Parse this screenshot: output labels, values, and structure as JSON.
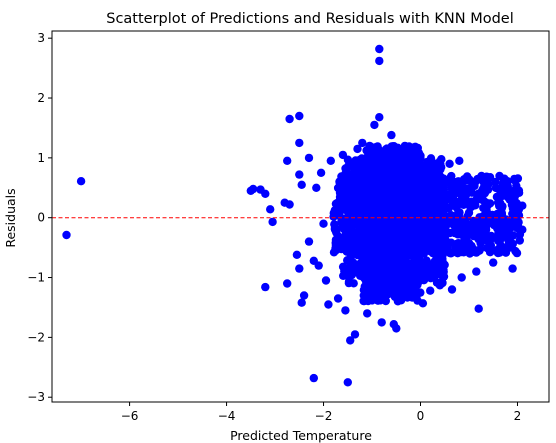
{
  "chart_data": {
    "type": "scatter",
    "title": "Scatterplot of Predictions and Residuals with KNN Model",
    "xlabel": "Predicted Temperature",
    "ylabel": "Residuals",
    "xlim": [
      -7.6,
      2.65
    ],
    "ylim": [
      -3.08,
      3.12
    ],
    "xticks": [
      -6,
      -4,
      -2,
      0,
      2
    ],
    "yticks": [
      -3,
      -2,
      -1,
      0,
      1,
      2,
      3
    ],
    "grid": false,
    "point_color": "#0000ff",
    "reference_line": {
      "y": 0,
      "color": "#ff0000",
      "style": "dashed"
    },
    "points": [
      {
        "x": -7.3,
        "y": -0.29
      },
      {
        "x": -7.0,
        "y": 0.61
      },
      {
        "x": -3.5,
        "y": 0.45
      },
      {
        "x": -3.45,
        "y": 0.48
      },
      {
        "x": -3.3,
        "y": 0.47
      },
      {
        "x": -3.2,
        "y": 0.4
      },
      {
        "x": -3.1,
        "y": 0.14
      },
      {
        "x": -3.05,
        "y": -0.07
      },
      {
        "x": -3.2,
        "y": -1.16
      },
      {
        "x": -2.8,
        "y": 0.25
      },
      {
        "x": -2.75,
        "y": -1.1
      },
      {
        "x": -2.7,
        "y": 0.22
      },
      {
        "x": -2.75,
        "y": 0.95
      },
      {
        "x": -2.7,
        "y": 1.65
      },
      {
        "x": -2.5,
        "y": 1.7
      },
      {
        "x": -2.5,
        "y": 1.25
      },
      {
        "x": -2.5,
        "y": 0.72
      },
      {
        "x": -2.45,
        "y": 0.55
      },
      {
        "x": -2.5,
        "y": -0.85
      },
      {
        "x": -2.55,
        "y": -0.62
      },
      {
        "x": -2.4,
        "y": -1.3
      },
      {
        "x": -2.45,
        "y": -1.42
      },
      {
        "x": -2.3,
        "y": -0.4
      },
      {
        "x": -2.2,
        "y": -0.72
      },
      {
        "x": -2.1,
        "y": -0.8
      },
      {
        "x": -2.3,
        "y": 1.0
      },
      {
        "x": -2.2,
        "y": -2.68
      },
      {
        "x": -2.15,
        "y": 0.5
      },
      {
        "x": -2.05,
        "y": 0.75
      },
      {
        "x": -2.0,
        "y": -0.1
      },
      {
        "x": -1.95,
        "y": -1.05
      },
      {
        "x": -1.9,
        "y": -1.45
      },
      {
        "x": -1.85,
        "y": 0.95
      },
      {
        "x": -1.7,
        "y": -1.35
      },
      {
        "x": -1.6,
        "y": 1.05
      },
      {
        "x": -1.55,
        "y": -1.55
      },
      {
        "x": -1.45,
        "y": -2.05
      },
      {
        "x": -1.5,
        "y": -2.75
      },
      {
        "x": -1.35,
        "y": -1.95
      },
      {
        "x": -1.3,
        "y": 1.15
      },
      {
        "x": -1.2,
        "y": 1.25
      },
      {
        "x": -1.1,
        "y": -1.6
      },
      {
        "x": -1.05,
        "y": 1.2
      },
      {
        "x": -0.95,
        "y": 1.55
      },
      {
        "x": -0.85,
        "y": 2.82
      },
      {
        "x": -0.85,
        "y": 2.62
      },
      {
        "x": -0.85,
        "y": 1.68
      },
      {
        "x": -0.8,
        "y": -1.75
      },
      {
        "x": -0.6,
        "y": 1.38
      },
      {
        "x": -0.55,
        "y": -1.78
      },
      {
        "x": -0.5,
        "y": -1.85
      },
      {
        "x": -0.45,
        "y": 0.85
      },
      {
        "x": -0.35,
        "y": -1.05
      },
      {
        "x": -0.25,
        "y": 1.08
      },
      {
        "x": -0.2,
        "y": -1.32
      },
      {
        "x": -0.1,
        "y": 0.95
      },
      {
        "x": 0.05,
        "y": -1.43
      },
      {
        "x": 0.2,
        "y": -1.22
      },
      {
        "x": 0.25,
        "y": -0.88
      },
      {
        "x": 0.4,
        "y": -1.13
      },
      {
        "x": 0.6,
        "y": 0.9
      },
      {
        "x": 0.65,
        "y": -1.2
      },
      {
        "x": 0.8,
        "y": 0.95
      },
      {
        "x": 0.85,
        "y": -1.0
      },
      {
        "x": 1.15,
        "y": -0.9
      },
      {
        "x": 1.2,
        "y": -1.52
      },
      {
        "x": 1.3,
        "y": 0.6
      },
      {
        "x": 1.5,
        "y": -0.75
      },
      {
        "x": 1.7,
        "y": 0.55
      },
      {
        "x": 1.9,
        "y": -0.85
      },
      {
        "x": 2.0,
        "y": 0.1
      },
      {
        "x": 2.05,
        "y": -0.28
      },
      {
        "x": 2.1,
        "y": 0.2
      },
      {
        "x": 2.1,
        "y": -0.2
      }
    ],
    "dense_cluster": {
      "count": 2400,
      "regions": [
        {
          "x_range": [
            -1.8,
            2.05
          ],
          "y_range": [
            -0.6,
            0.7
          ]
        },
        {
          "x_range": [
            -1.6,
            0.5
          ],
          "y_range": [
            -1.1,
            1.0
          ]
        },
        {
          "x_range": [
            -1.2,
            0.0
          ],
          "y_range": [
            -1.4,
            1.2
          ]
        }
      ]
    }
  }
}
